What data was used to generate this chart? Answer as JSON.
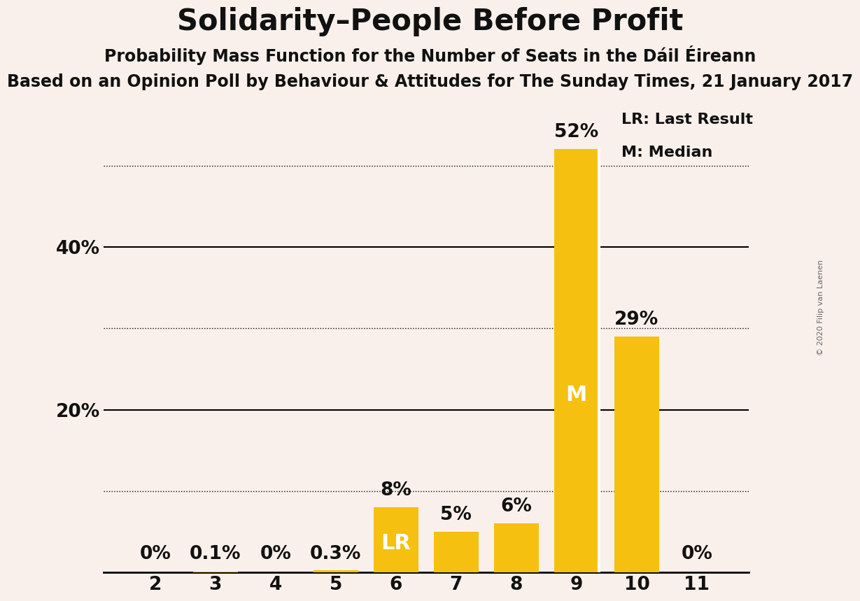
{
  "title": "Solidarity–People Before Profit",
  "subtitle": "Probability Mass Function for the Number of Seats in the Dáil Éireann",
  "subtitle2": "Based on an Opinion Poll by Behaviour & Attitudes for The Sunday Times, 21 January 2017",
  "copyright": "© 2020 Filip van Laenen",
  "categories": [
    2,
    3,
    4,
    5,
    6,
    7,
    8,
    9,
    10,
    11
  ],
  "values": [
    0.0,
    0.1,
    0.0,
    0.3,
    8.0,
    5.0,
    6.0,
    52.0,
    29.0,
    0.0
  ],
  "labels": [
    "0%",
    "0.1%",
    "0%",
    "0.3%",
    "8%",
    "5%",
    "6%",
    "52%",
    "29%",
    "0%"
  ],
  "bar_color": "#F5C010",
  "background_color": "#FAF0EB",
  "text_color": "#111111",
  "lr_seat": 6,
  "median_seat": 9,
  "lr_label": "LR",
  "median_label": "M",
  "legend_lr": "LR: Last Result",
  "legend_m": "M: Median",
  "ylim_max": 58,
  "solid_lines": [
    20,
    40
  ],
  "dotted_lines": [
    10,
    30,
    50
  ],
  "title_fontsize": 30,
  "subtitle_fontsize": 17,
  "subtitle2_fontsize": 17,
  "bar_label_fontsize": 19,
  "tick_fontsize": 19,
  "legend_fontsize": 16,
  "inside_label_fontsize": 22
}
